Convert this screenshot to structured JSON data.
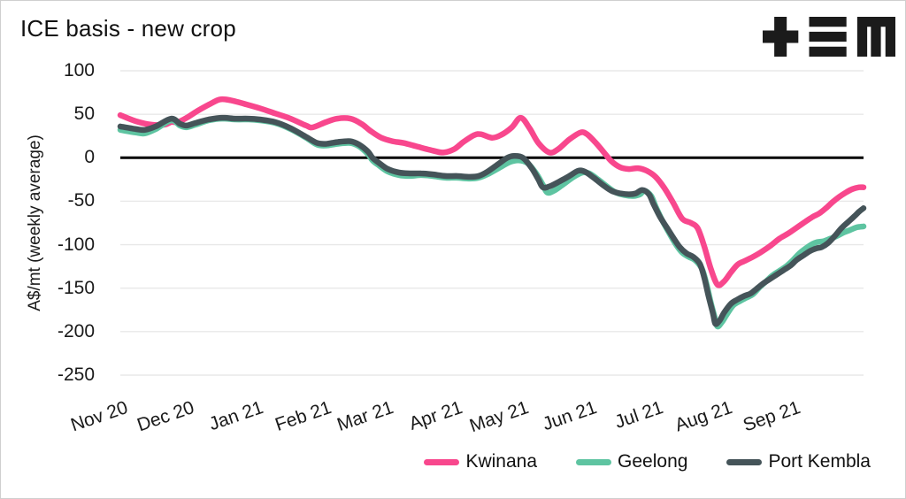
{
  "header": {
    "logo_name": "tem-logo"
  },
  "chart_data": {
    "type": "line",
    "title": "ICE basis - new crop",
    "xlabel": "",
    "ylabel": "A$/mt (weekly average)",
    "ylim": [
      -250,
      100
    ],
    "yticks": [
      100,
      50,
      0,
      -50,
      -100,
      -150,
      -200,
      -250
    ],
    "grid": true,
    "zero_line": true,
    "legend_position": "bottom-right",
    "x_unit": "days since 1 Nov 2020",
    "x_domain_days": [
      0,
      336
    ],
    "x_ticks": [
      {
        "label": "Nov 20",
        "day": 0
      },
      {
        "label": "Dec 20",
        "day": 30
      },
      {
        "label": "Jan 21",
        "day": 61
      },
      {
        "label": "Feb 21",
        "day": 92
      },
      {
        "label": "Mar 21",
        "day": 120
      },
      {
        "label": "Apr 21",
        "day": 151
      },
      {
        "label": "May 21",
        "day": 181
      },
      {
        "label": "Jun 21",
        "day": 212
      },
      {
        "label": "Jul 21",
        "day": 242
      },
      {
        "label": "Aug 21",
        "day": 273
      },
      {
        "label": "Sep 21",
        "day": 304
      }
    ],
    "series": [
      {
        "name": "Kwinana",
        "color": "#f8478d",
        "points": [
          [
            0,
            49
          ],
          [
            7,
            42
          ],
          [
            14,
            38
          ],
          [
            20,
            38
          ],
          [
            23,
            41
          ],
          [
            26,
            41
          ],
          [
            30,
            46
          ],
          [
            35,
            54
          ],
          [
            40,
            61
          ],
          [
            45,
            67
          ],
          [
            50,
            66
          ],
          [
            56,
            62
          ],
          [
            63,
            57
          ],
          [
            70,
            51
          ],
          [
            77,
            45
          ],
          [
            84,
            37
          ],
          [
            87,
            35
          ],
          [
            93,
            41
          ],
          [
            98,
            45
          ],
          [
            104,
            45
          ],
          [
            109,
            39
          ],
          [
            113,
            31
          ],
          [
            118,
            23
          ],
          [
            123,
            19
          ],
          [
            128,
            17
          ],
          [
            134,
            13
          ],
          [
            140,
            9
          ],
          [
            146,
            6
          ],
          [
            151,
            10
          ],
          [
            155,
            18
          ],
          [
            160,
            26
          ],
          [
            163,
            27
          ],
          [
            168,
            23
          ],
          [
            172,
            26
          ],
          [
            177,
            35
          ],
          [
            181,
            46
          ],
          [
            185,
            34
          ],
          [
            189,
            17
          ],
          [
            194,
            6
          ],
          [
            198,
            10
          ],
          [
            203,
            21
          ],
          [
            208,
            29
          ],
          [
            211,
            27
          ],
          [
            215,
            17
          ],
          [
            219,
            5
          ],
          [
            222,
            -4
          ],
          [
            226,
            -11
          ],
          [
            230,
            -13
          ],
          [
            234,
            -12
          ],
          [
            238,
            -15
          ],
          [
            242,
            -22
          ],
          [
            246,
            -35
          ],
          [
            250,
            -52
          ],
          [
            254,
            -70
          ],
          [
            258,
            -75
          ],
          [
            261,
            -81
          ],
          [
            264,
            -102
          ],
          [
            267,
            -128
          ],
          [
            270,
            -146
          ],
          [
            273,
            -142
          ],
          [
            276,
            -132
          ],
          [
            279,
            -123
          ],
          [
            282,
            -119
          ],
          [
            286,
            -114
          ],
          [
            290,
            -108
          ],
          [
            294,
            -101
          ],
          [
            298,
            -93
          ],
          [
            302,
            -87
          ],
          [
            306,
            -80
          ],
          [
            310,
            -73
          ],
          [
            313,
            -68
          ],
          [
            316,
            -64
          ],
          [
            319,
            -58
          ],
          [
            322,
            -51
          ],
          [
            325,
            -45
          ],
          [
            328,
            -40
          ],
          [
            331,
            -36
          ],
          [
            334,
            -34
          ],
          [
            336,
            -34
          ]
        ]
      },
      {
        "name": "Geelong",
        "color": "#5ec4a1",
        "points": [
          [
            0,
            32
          ],
          [
            7,
            29
          ],
          [
            11,
            28
          ],
          [
            16,
            33
          ],
          [
            23,
            43
          ],
          [
            27,
            37
          ],
          [
            30,
            35
          ],
          [
            34,
            38
          ],
          [
            40,
            43
          ],
          [
            46,
            45
          ],
          [
            52,
            44
          ],
          [
            58,
            44
          ],
          [
            63,
            43
          ],
          [
            70,
            40
          ],
          [
            77,
            33
          ],
          [
            84,
            23
          ],
          [
            89,
            15
          ],
          [
            93,
            14
          ],
          [
            98,
            16
          ],
          [
            104,
            17
          ],
          [
            108,
            13
          ],
          [
            112,
            4
          ],
          [
            114,
            -3
          ],
          [
            117,
            -9
          ],
          [
            121,
            -16
          ],
          [
            126,
            -20
          ],
          [
            131,
            -21
          ],
          [
            136,
            -20
          ],
          [
            141,
            -21
          ],
          [
            147,
            -23
          ],
          [
            152,
            -23
          ],
          [
            158,
            -24
          ],
          [
            162,
            -23
          ],
          [
            166,
            -19
          ],
          [
            171,
            -12
          ],
          [
            176,
            -5
          ],
          [
            180,
            -3
          ],
          [
            184,
            -6
          ],
          [
            188,
            -18
          ],
          [
            191,
            -31
          ],
          [
            193,
            -40
          ],
          [
            196,
            -38
          ],
          [
            200,
            -31
          ],
          [
            205,
            -22
          ],
          [
            209,
            -17
          ],
          [
            212,
            -18
          ],
          [
            216,
            -25
          ],
          [
            220,
            -33
          ],
          [
            224,
            -40
          ],
          [
            228,
            -43
          ],
          [
            232,
            -44
          ],
          [
            235,
            -42
          ],
          [
            237,
            -38
          ],
          [
            240,
            -44
          ],
          [
            242,
            -56
          ],
          [
            245,
            -72
          ],
          [
            248,
            -86
          ],
          [
            251,
            -99
          ],
          [
            254,
            -109
          ],
          [
            257,
            -114
          ],
          [
            260,
            -118
          ],
          [
            263,
            -128
          ],
          [
            265,
            -145
          ],
          [
            267,
            -167
          ],
          [
            269,
            -186
          ],
          [
            270,
            -194
          ],
          [
            272,
            -189
          ],
          [
            274,
            -181
          ],
          [
            277,
            -170
          ],
          [
            280,
            -165
          ],
          [
            283,
            -161
          ],
          [
            286,
            -157
          ],
          [
            289,
            -149
          ],
          [
            292,
            -142
          ],
          [
            295,
            -135
          ],
          [
            298,
            -130
          ],
          [
            301,
            -125
          ],
          [
            304,
            -118
          ],
          [
            307,
            -110
          ],
          [
            310,
            -104
          ],
          [
            313,
            -99
          ],
          [
            315,
            -97
          ],
          [
            318,
            -96
          ],
          [
            321,
            -93
          ],
          [
            324,
            -90
          ],
          [
            327,
            -86
          ],
          [
            330,
            -83
          ],
          [
            333,
            -80
          ],
          [
            336,
            -79
          ]
        ]
      },
      {
        "name": "Port Kembla",
        "color": "#455459",
        "points": [
          [
            0,
            36
          ],
          [
            7,
            33
          ],
          [
            11,
            32
          ],
          [
            16,
            36
          ],
          [
            23,
            45
          ],
          [
            27,
            39
          ],
          [
            30,
            37
          ],
          [
            34,
            40
          ],
          [
            40,
            44
          ],
          [
            46,
            46
          ],
          [
            52,
            45
          ],
          [
            58,
            45
          ],
          [
            63,
            44
          ],
          [
            70,
            41
          ],
          [
            77,
            34
          ],
          [
            84,
            24
          ],
          [
            89,
            17
          ],
          [
            93,
            16
          ],
          [
            98,
            18
          ],
          [
            104,
            19
          ],
          [
            108,
            15
          ],
          [
            112,
            7
          ],
          [
            114,
            0
          ],
          [
            117,
            -6
          ],
          [
            121,
            -13
          ],
          [
            126,
            -17
          ],
          [
            131,
            -18
          ],
          [
            136,
            -18
          ],
          [
            141,
            -19
          ],
          [
            147,
            -21
          ],
          [
            152,
            -21
          ],
          [
            158,
            -22
          ],
          [
            162,
            -21
          ],
          [
            166,
            -16
          ],
          [
            171,
            -7
          ],
          [
            175,
            0
          ],
          [
            178,
            2
          ],
          [
            182,
            0
          ],
          [
            186,
            -12
          ],
          [
            189,
            -25
          ],
          [
            191,
            -34
          ],
          [
            194,
            -33
          ],
          [
            198,
            -28
          ],
          [
            203,
            -21
          ],
          [
            207,
            -15
          ],
          [
            210,
            -16
          ],
          [
            214,
            -23
          ],
          [
            218,
            -31
          ],
          [
            222,
            -38
          ],
          [
            226,
            -41
          ],
          [
            230,
            -42
          ],
          [
            233,
            -41
          ],
          [
            236,
            -37
          ],
          [
            239,
            -42
          ],
          [
            241,
            -53
          ],
          [
            244,
            -68
          ],
          [
            247,
            -80
          ],
          [
            250,
            -92
          ],
          [
            253,
            -103
          ],
          [
            256,
            -110
          ],
          [
            259,
            -114
          ],
          [
            262,
            -122
          ],
          [
            264,
            -138
          ],
          [
            266,
            -160
          ],
          [
            268,
            -180
          ],
          [
            269,
            -191
          ],
          [
            271,
            -187
          ],
          [
            273,
            -178
          ],
          [
            276,
            -168
          ],
          [
            279,
            -163
          ],
          [
            282,
            -159
          ],
          [
            285,
            -156
          ],
          [
            288,
            -150
          ],
          [
            291,
            -144
          ],
          [
            294,
            -139
          ],
          [
            297,
            -134
          ],
          [
            300,
            -129
          ],
          [
            303,
            -124
          ],
          [
            306,
            -117
          ],
          [
            309,
            -112
          ],
          [
            312,
            -107
          ],
          [
            315,
            -104
          ],
          [
            317,
            -103
          ],
          [
            320,
            -98
          ],
          [
            323,
            -90
          ],
          [
            326,
            -81
          ],
          [
            329,
            -74
          ],
          [
            332,
            -67
          ],
          [
            334,
            -62
          ],
          [
            336,
            -58
          ]
        ]
      }
    ]
  }
}
